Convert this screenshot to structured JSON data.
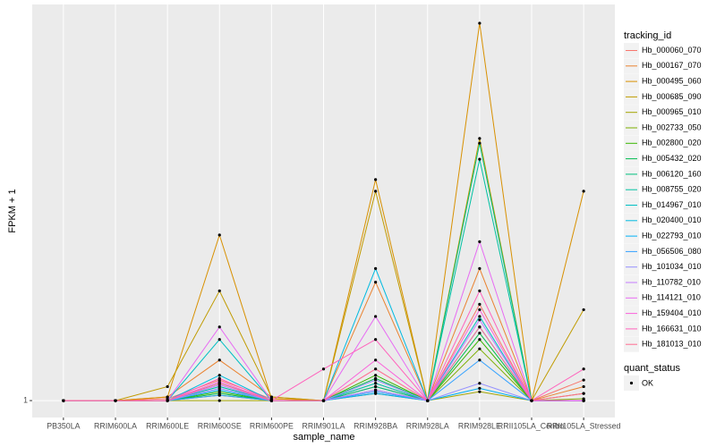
{
  "chart_data": {
    "type": "line",
    "x_label": "sample_name",
    "y_label": "FPKM + 1",
    "y_scale": "log10",
    "legend_title": "tracking_id",
    "point_legend_title": "quant_status",
    "point_legend_label": "OK",
    "point_color": "#000000",
    "grid": true,
    "legend_position": "right",
    "categories": [
      "PB350LA",
      "RRIM600LA",
      "RRIM600LE",
      "RRIM600SE",
      "RRIM600PE",
      "RRIM901LA",
      "RRIM928BA",
      "RRIM928LA",
      "RRIM928LE",
      "RRII105LA_Control",
      "RRII105LA_Stressed"
    ],
    "ylim": [
      0.911,
      8.87
    ],
    "yticks": [
      1
    ],
    "series": [
      {
        "name": "Hb_000060_070",
        "color": "#F8766D",
        "values": [
          1,
          1,
          1.01,
          1.12,
          1.01,
          1,
          1.08,
          1,
          1.7,
          1,
          1.12
        ]
      },
      {
        "name": "Hb_000167_070",
        "color": "#EA8331",
        "values": [
          1,
          1,
          1.02,
          1.25,
          1.02,
          1,
          1.92,
          1,
          2.07,
          1,
          1.08
        ]
      },
      {
        "name": "Hb_000495_060",
        "color": "#D89000",
        "values": [
          1,
          1,
          1.02,
          2.49,
          1.01,
          1,
          3.38,
          1,
          8.0,
          1,
          3.17
        ]
      },
      {
        "name": "Hb_000685_090",
        "color": "#C09B00",
        "values": [
          1,
          1,
          1.08,
          1.83,
          1.02,
          1,
          3.17,
          1,
          4.24,
          1,
          1.65
        ]
      },
      {
        "name": "Hb_000965_010",
        "color": "#A3A500",
        "values": [
          1,
          1,
          1,
          1,
          1,
          1,
          1.04,
          1,
          1.05,
          1,
          1.04
        ]
      },
      {
        "name": "Hb_002733_050",
        "color": "#7CAE00",
        "values": [
          1,
          1,
          1,
          1.03,
          1,
          1,
          1.1,
          1,
          1.33,
          1,
          1.01
        ]
      },
      {
        "name": "Hb_002800_020",
        "color": "#39B600",
        "values": [
          1,
          1,
          1,
          1.05,
          1,
          1,
          1.15,
          1,
          1.4,
          1,
          1
        ]
      },
      {
        "name": "Hb_005432_020",
        "color": "#00BB4E",
        "values": [
          1,
          1,
          1,
          1.04,
          1,
          1,
          1.13,
          1,
          1.45,
          1,
          1
        ]
      },
      {
        "name": "Hb_006120_160",
        "color": "#00BF7D",
        "values": [
          1,
          1,
          1,
          1.1,
          1,
          1,
          1.08,
          1,
          4.13,
          1,
          1
        ]
      },
      {
        "name": "Hb_008755_020",
        "color": "#00C1A3",
        "values": [
          1,
          1,
          1,
          1.08,
          1,
          1,
          1.06,
          1,
          3.78,
          1,
          1
        ]
      },
      {
        "name": "Hb_014967_010",
        "color": "#00BFC4",
        "values": [
          1,
          1,
          1,
          1.4,
          1,
          1,
          1.1,
          1,
          1.59,
          1,
          1
        ]
      },
      {
        "name": "Hb_020400_010",
        "color": "#00BAE0",
        "values": [
          1,
          1,
          1,
          1.15,
          1,
          1,
          2.07,
          1,
          1.5,
          1,
          1
        ]
      },
      {
        "name": "Hb_022793_010",
        "color": "#00B0F6",
        "values": [
          1,
          1,
          1,
          1.06,
          1,
          1,
          1.04,
          1,
          1.07,
          1,
          1
        ]
      },
      {
        "name": "Hb_056506_080",
        "color": "#35A2FF",
        "values": [
          1,
          1,
          1,
          1.03,
          1,
          1,
          1.05,
          1,
          1.25,
          1,
          1
        ]
      },
      {
        "name": "Hb_101034_010",
        "color": "#9590FF",
        "values": [
          1,
          1,
          1,
          1.07,
          1,
          1,
          1.12,
          1,
          1.1,
          1,
          1
        ]
      },
      {
        "name": "Hb_110782_010",
        "color": "#C77CFF",
        "values": [
          1,
          1,
          1,
          1.09,
          1,
          1,
          1.06,
          1,
          1.56,
          1,
          1
        ]
      },
      {
        "name": "Hb_114121_010",
        "color": "#E76BF3",
        "values": [
          1,
          1,
          1,
          1.5,
          1,
          1,
          1.59,
          1,
          2.4,
          1,
          1
        ]
      },
      {
        "name": "Hb_159404_010",
        "color": "#FA62DB",
        "values": [
          1,
          1,
          1,
          1.11,
          1,
          1,
          1.25,
          1,
          1.65,
          1,
          1
        ]
      },
      {
        "name": "Hb_166631_010",
        "color": "#FF62BC",
        "values": [
          1,
          1,
          1,
          1.13,
          1,
          1.19,
          1.4,
          1,
          1.83,
          1,
          1.19
        ]
      },
      {
        "name": "Hb_181013_010",
        "color": "#FF6C91",
        "values": [
          1,
          1,
          1,
          1.1,
          1,
          1,
          1.19,
          1,
          1.5,
          1,
          1.04
        ]
      }
    ]
  }
}
